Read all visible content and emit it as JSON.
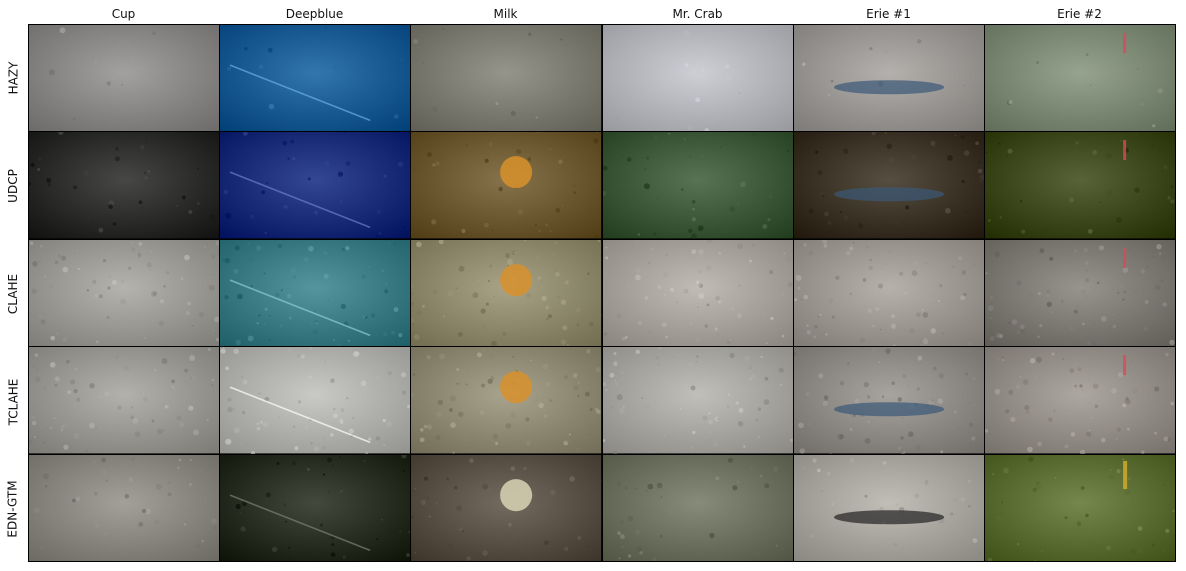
{
  "columns": [
    "Cup",
    "Deepblue",
    "Milk",
    "Mr. Crab",
    "Erie #1",
    "Erie #2"
  ],
  "rows": [
    "HAZY",
    "UDCP",
    "CLAHE",
    "TCLAHE",
    "EDN-GTM"
  ],
  "colors": {
    "hazy": [
      "#8a8886",
      "#1a5c94",
      "#7d7c72",
      "#b4b6bc",
      "#9b9794",
      "#7d8a76"
    ],
    "udcp": [
      "#2e2f2c",
      "#1b2e7a",
      "#6d5a32",
      "#3e5a3a",
      "#3d3528",
      "#3f4a1e"
    ],
    "clahe": [
      "#9c9a94",
      "#3c7d85",
      "#8f8a6e",
      "#a7a39c",
      "#9d9892",
      "#7e7a74"
    ],
    "tclahe": [
      "#9a9893",
      "#b0b0ac",
      "#8f8a74",
      "#a8a6a0",
      "#8e8a86",
      "#948e88"
    ],
    "edn": [
      "#8a8680",
      "#2a3024",
      "#5a5246",
      "#6e7260",
      "#a8a49e",
      "#5c6e34"
    ]
  }
}
